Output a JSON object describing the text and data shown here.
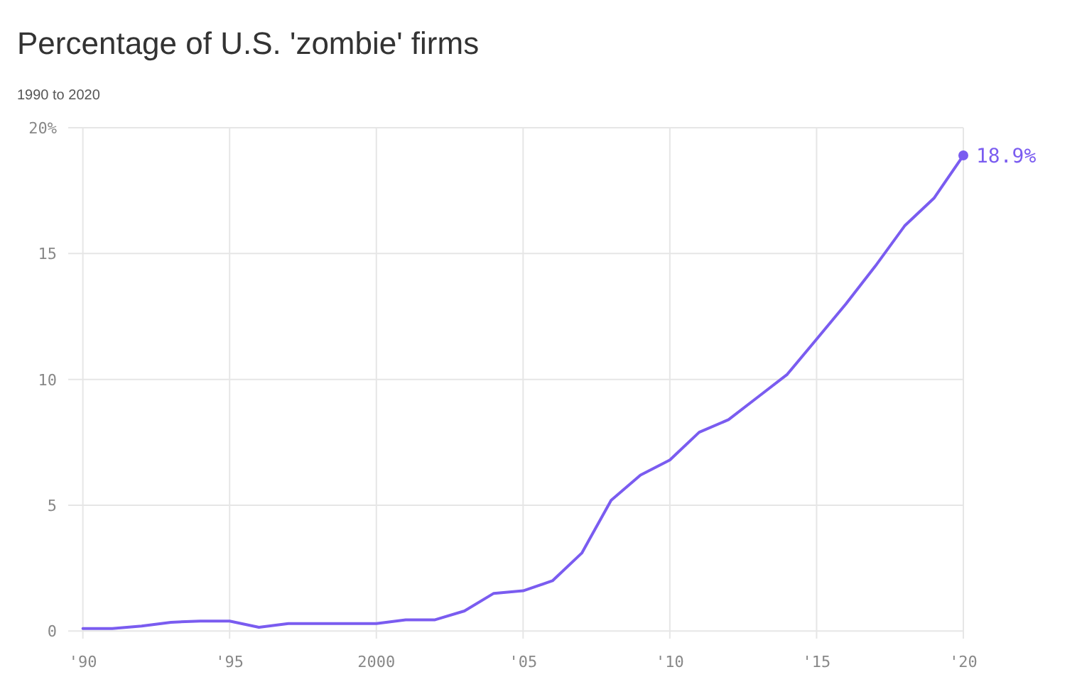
{
  "chart_data": {
    "type": "line",
    "title": "Percentage of U.S. 'zombie' firms",
    "subtitle": "1990 to 2020",
    "x": [
      1990,
      1991,
      1992,
      1993,
      1994,
      1995,
      1996,
      1997,
      1998,
      1999,
      2000,
      2001,
      2002,
      2003,
      2004,
      2005,
      2006,
      2007,
      2008,
      2009,
      2010,
      2011,
      2012,
      2013,
      2014,
      2015,
      2016,
      2017,
      2018,
      2019,
      2020
    ],
    "series": [
      {
        "color": "#7a5cf0",
        "values": [
          0.1,
          0.1,
          0.2,
          0.35,
          0.4,
          0.4,
          0.15,
          0.3,
          0.3,
          0.3,
          0.3,
          0.45,
          0.45,
          0.8,
          1.5,
          1.6,
          2.0,
          3.1,
          5.2,
          6.2,
          6.8,
          7.9,
          8.4,
          9.3,
          10.2,
          11.6,
          13.0,
          14.5,
          16.1,
          17.2,
          18.9
        ]
      }
    ],
    "xlim": [
      1989.5,
      2020
    ],
    "xticks": [
      {
        "value": 1990,
        "label": "'90"
      },
      {
        "value": 1995,
        "label": "'95"
      },
      2000,
      {
        "value": 2005,
        "label": "'05"
      },
      {
        "value": 2010,
        "label": "'10"
      },
      {
        "value": 2015,
        "label": "'15"
      },
      {
        "value": 2020,
        "label": "'20"
      }
    ],
    "ylim": [
      -0.3,
      20
    ],
    "yticks": [
      0,
      5,
      10,
      15,
      {
        "value": 20,
        "label": "20%"
      }
    ],
    "grid": true,
    "marker": "none",
    "line_style": "solid",
    "annotations": [
      {
        "text": "18.9%",
        "x": 2020,
        "y": 18.9
      }
    ]
  }
}
